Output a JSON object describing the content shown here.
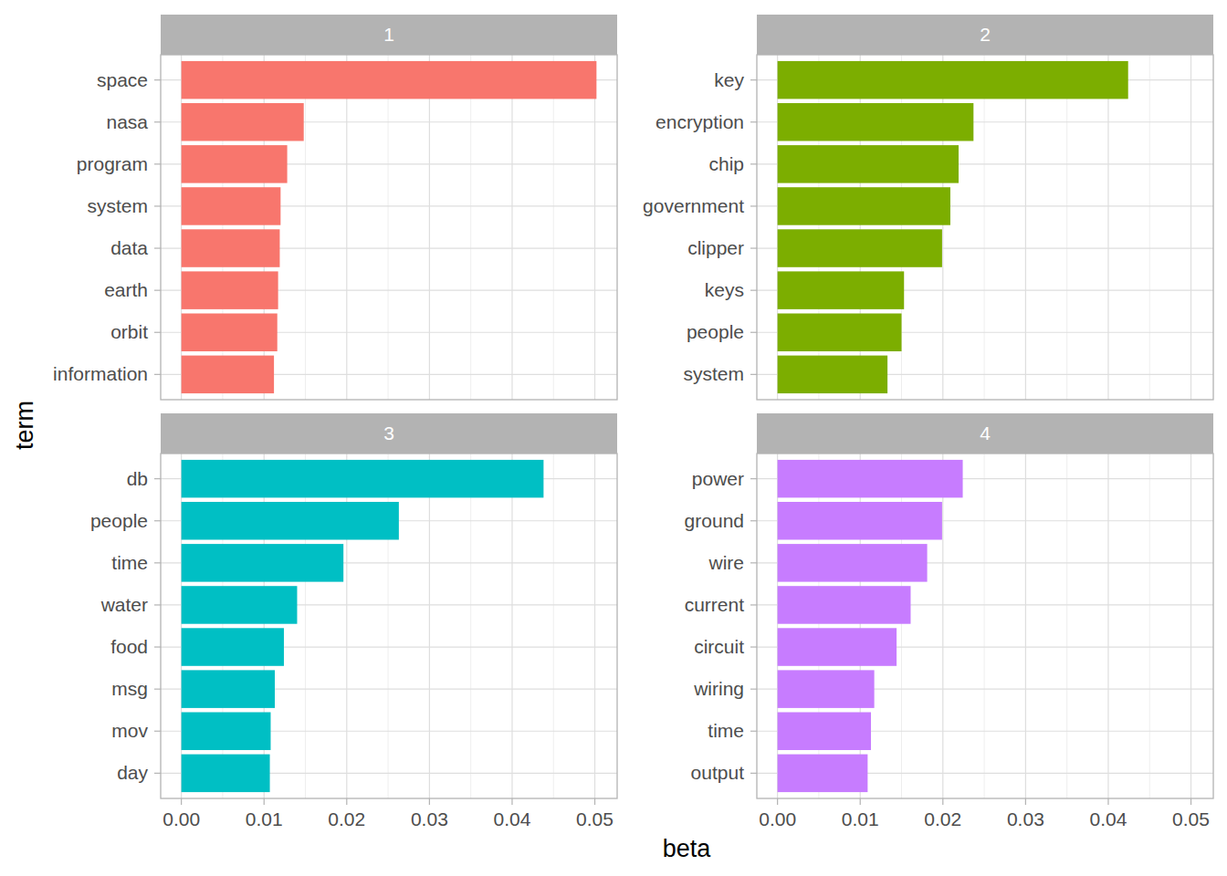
{
  "chart_data": [
    {
      "type": "bar",
      "title": "1",
      "orientation": "horizontal",
      "grid": true,
      "color": "#F8766D",
      "x_label": "beta",
      "y_label": "term",
      "categories": [
        "space",
        "nasa",
        "program",
        "system",
        "data",
        "earth",
        "orbit",
        "information"
      ],
      "values": [
        0.0502,
        0.0148,
        0.0128,
        0.012,
        0.0119,
        0.0117,
        0.0116,
        0.0112
      ],
      "xlim": [
        -0.0025,
        0.0527
      ],
      "xticks": [
        {
          "value": 0,
          "label": "0.00"
        },
        {
          "value": 0.01,
          "label": "0.01"
        },
        {
          "value": 0.02,
          "label": "0.02"
        },
        {
          "value": 0.03,
          "label": "0.03"
        },
        {
          "value": 0.04,
          "label": "0.04"
        },
        {
          "value": 0.05,
          "label": "0.05"
        }
      ]
    },
    {
      "type": "bar",
      "title": "2",
      "orientation": "horizontal",
      "grid": true,
      "color": "#7CAE00",
      "categories": [
        "key",
        "encryption",
        "chip",
        "government",
        "clipper",
        "keys",
        "people",
        "system"
      ],
      "values": [
        0.0424,
        0.0237,
        0.0219,
        0.0209,
        0.0199,
        0.0153,
        0.015,
        0.0133
      ],
      "xlim": [
        -0.0025,
        0.0527
      ],
      "xticks": [
        {
          "value": 0,
          "label": "0.00"
        },
        {
          "value": 0.01,
          "label": "0.01"
        },
        {
          "value": 0.02,
          "label": "0.02"
        },
        {
          "value": 0.03,
          "label": "0.03"
        },
        {
          "value": 0.04,
          "label": "0.04"
        },
        {
          "value": 0.05,
          "label": "0.05"
        }
      ]
    },
    {
      "type": "bar",
      "title": "3",
      "orientation": "horizontal",
      "grid": true,
      "color": "#00BFC4",
      "categories": [
        "db",
        "people",
        "time",
        "water",
        "food",
        "msg",
        "mov",
        "day"
      ],
      "values": [
        0.0438,
        0.0263,
        0.0196,
        0.014,
        0.0124,
        0.0113,
        0.0108,
        0.0107
      ],
      "xlim": [
        -0.0025,
        0.0527
      ],
      "xticks": [
        {
          "value": 0,
          "label": "0.00"
        },
        {
          "value": 0.01,
          "label": "0.01"
        },
        {
          "value": 0.02,
          "label": "0.02"
        },
        {
          "value": 0.03,
          "label": "0.03"
        },
        {
          "value": 0.04,
          "label": "0.04"
        },
        {
          "value": 0.05,
          "label": "0.05"
        }
      ]
    },
    {
      "type": "bar",
      "title": "4",
      "orientation": "horizontal",
      "grid": true,
      "color": "#C77CFF",
      "categories": [
        "power",
        "ground",
        "wire",
        "current",
        "circuit",
        "wiring",
        "time",
        "output"
      ],
      "values": [
        0.0224,
        0.0199,
        0.0181,
        0.0161,
        0.0144,
        0.0117,
        0.0113,
        0.0109
      ],
      "xlim": [
        -0.0025,
        0.0527
      ],
      "xticks": [
        {
          "value": 0,
          "label": "0.00"
        },
        {
          "value": 0.01,
          "label": "0.01"
        },
        {
          "value": 0.02,
          "label": "0.02"
        },
        {
          "value": 0.03,
          "label": "0.03"
        },
        {
          "value": 0.04,
          "label": "0.04"
        },
        {
          "value": 0.05,
          "label": "0.05"
        }
      ]
    }
  ]
}
